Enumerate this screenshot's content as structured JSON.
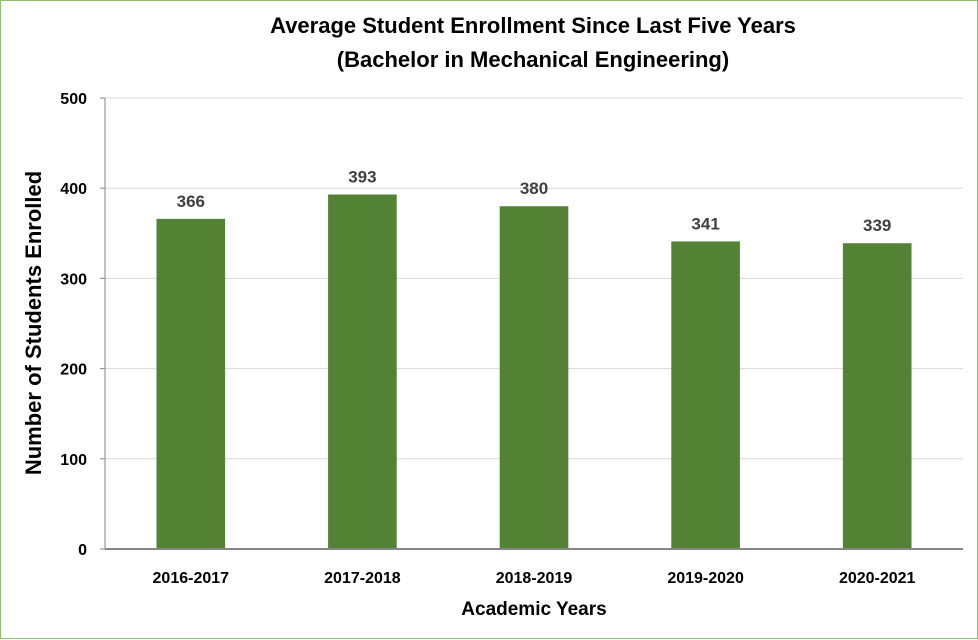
{
  "chart_data": {
    "type": "bar",
    "title": "Average Student Enrollment Since Last Five Years",
    "subtitle": "(Bachelor in Mechanical Engineering)",
    "xlabel": "Academic Years",
    "ylabel": "Number of Students Enrolled",
    "categories": [
      "2016-2017",
      "2017-2018",
      "2018-2019",
      "2019-2020",
      "2020-2021"
    ],
    "values": [
      366,
      393,
      380,
      341,
      339
    ],
    "data_labels": [
      "366",
      "393",
      "380",
      "341",
      "339"
    ],
    "ylim": [
      0,
      500
    ],
    "yticks": [
      0,
      100,
      200,
      300,
      400,
      500
    ],
    "ytick_labels": [
      "0",
      "100",
      "200",
      "300",
      "400",
      "500"
    ],
    "grid": true,
    "legend": "none",
    "bar_color": "#548235",
    "border_color": "#8cbf6a"
  }
}
